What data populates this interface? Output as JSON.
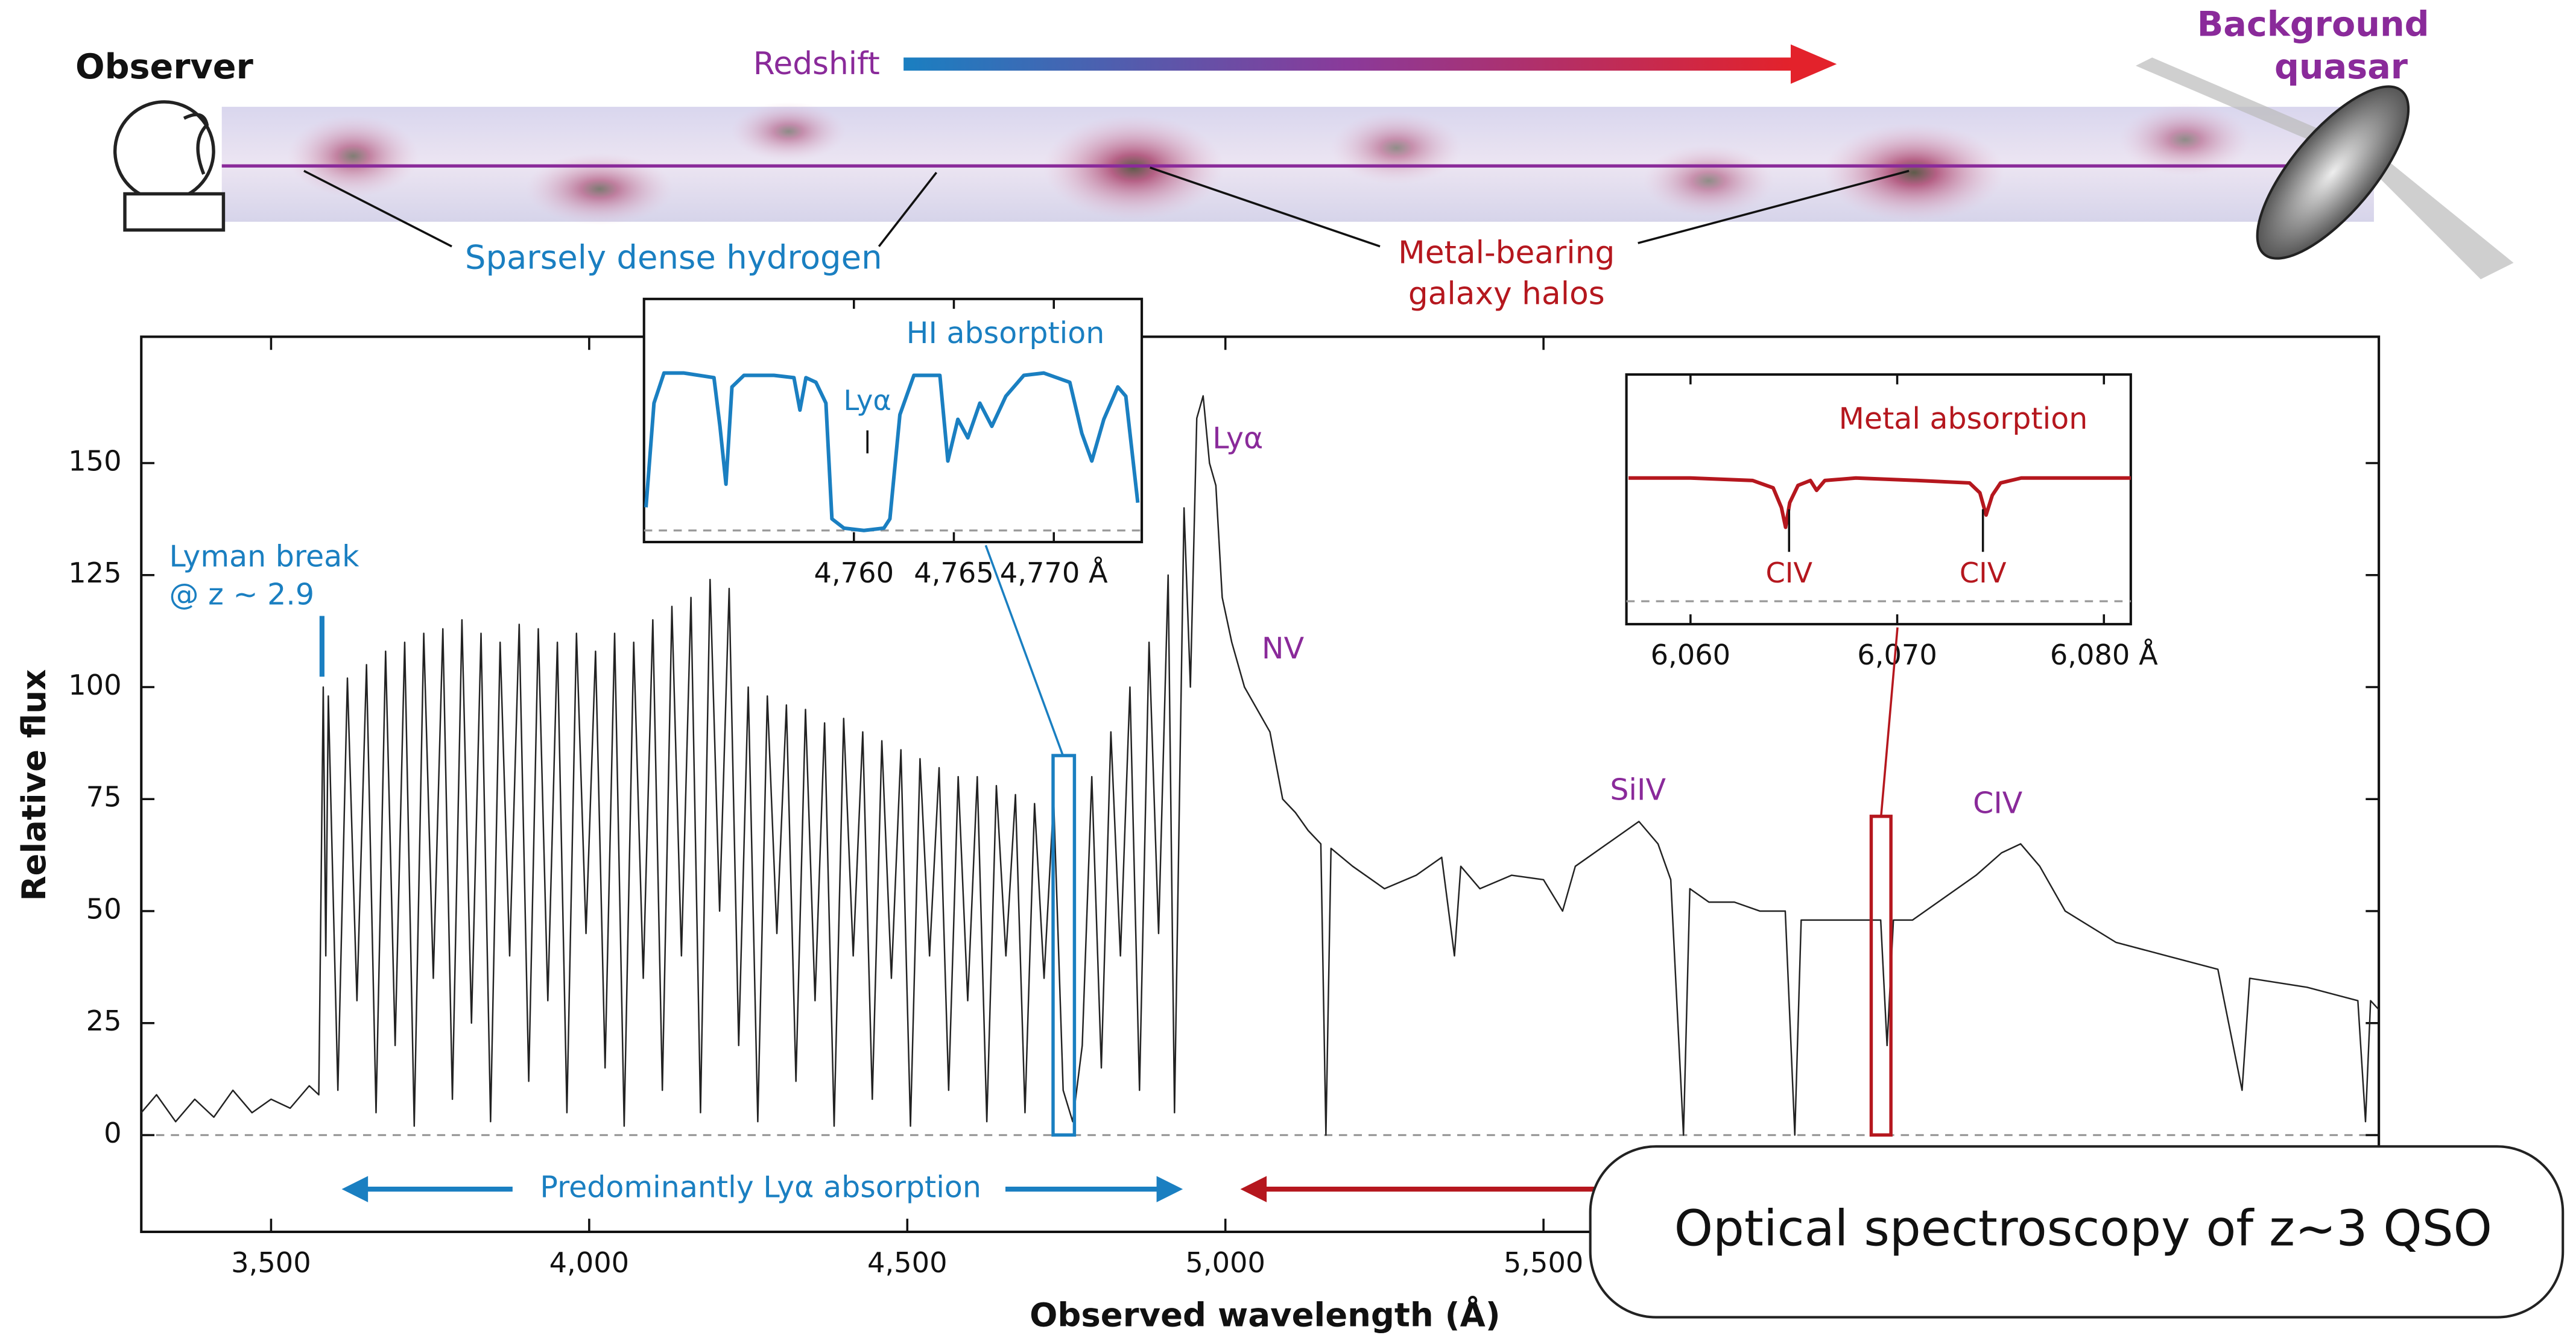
{
  "illustration": {
    "observer": "Observer",
    "redshift": "Redshift",
    "quasar": [
      "Background",
      "quasar"
    ],
    "hydrogen": "Sparsely dense hydrogen",
    "halos": [
      "Metal-bearing",
      "galaxy halos"
    ]
  },
  "callout": "Optical spectroscopy of z~3 QSO",
  "chart_data": [
    {
      "type": "line",
      "x_label": "Observed wavelength (Å)",
      "y_label": "Relative flux",
      "color": "#222222",
      "annotations": {
        "lyman_break": [
          "Lyman break",
          "@ z ~ 2.9"
        ],
        "lya": "Lyα",
        "nv": "NV",
        "siiv": "SiIV",
        "civ": "CIV",
        "forest": "Predominantly Lyα absorption"
      },
      "xlim": [
        3296,
        6813
      ],
      "ylim": [
        -21.6,
        178.2
      ],
      "xticks": [
        {
          "value": 3500,
          "label": "3,500"
        },
        {
          "value": 4000,
          "label": "4,000"
        },
        {
          "value": 4500,
          "label": "4,500"
        },
        {
          "value": 5000,
          "label": "5,000"
        },
        {
          "value": 5500,
          "label": "5,500"
        }
      ],
      "yticks": [
        0,
        25,
        50,
        75,
        100,
        125,
        150
      ],
      "x": [
        3296,
        3320,
        3350,
        3380,
        3410,
        3440,
        3470,
        3500,
        3530,
        3560,
        3575,
        3582,
        3586,
        3590,
        3605,
        3620,
        3635,
        3650,
        3665,
        3680,
        3695,
        3710,
        3725,
        3740,
        3755,
        3770,
        3785,
        3800,
        3815,
        3830,
        3845,
        3860,
        3875,
        3890,
        3905,
        3920,
        3935,
        3950,
        3965,
        3980,
        3995,
        4010,
        4025,
        4040,
        4055,
        4070,
        4085,
        4100,
        4115,
        4130,
        4145,
        4160,
        4175,
        4190,
        4205,
        4220,
        4235,
        4250,
        4265,
        4280,
        4295,
        4310,
        4325,
        4340,
        4355,
        4370,
        4385,
        4400,
        4415,
        4430,
        4445,
        4460,
        4475,
        4490,
        4505,
        4520,
        4535,
        4550,
        4565,
        4580,
        4595,
        4610,
        4625,
        4640,
        4655,
        4670,
        4685,
        4700,
        4715,
        4730,
        4745,
        4760,
        4775,
        4790,
        4805,
        4820,
        4835,
        4850,
        4865,
        4880,
        4895,
        4910,
        4920,
        4935,
        4945,
        4955,
        4965,
        4975,
        4985,
        4995,
        5010,
        5030,
        5050,
        5070,
        5090,
        5110,
        5130,
        5150,
        5158,
        5166,
        5200,
        5250,
        5300,
        5340,
        5360,
        5370,
        5400,
        5450,
        5500,
        5530,
        5550,
        5600,
        5630,
        5650,
        5680,
        5700,
        5720,
        5730,
        5760,
        5800,
        5840,
        5880,
        5895,
        5905,
        5960,
        6000,
        6030,
        6040,
        6050,
        6080,
        6120,
        6180,
        6220,
        6250,
        6280,
        6320,
        6400,
        6480,
        6560,
        6598,
        6610,
        6700,
        6780,
        6792,
        6800,
        6813
      ],
      "values": [
        5,
        9,
        3,
        8,
        4,
        10,
        5,
        8,
        6,
        11,
        9,
        100,
        40,
        98,
        10,
        102,
        30,
        105,
        5,
        108,
        20,
        110,
        2,
        112,
        35,
        113,
        8,
        115,
        25,
        112,
        3,
        110,
        40,
        114,
        12,
        113,
        30,
        110,
        5,
        112,
        45,
        108,
        15,
        112,
        2,
        110,
        35,
        115,
        10,
        118,
        40,
        120,
        5,
        124,
        50,
        122,
        20,
        100,
        3,
        98,
        45,
        96,
        12,
        95,
        30,
        92,
        2,
        93,
        40,
        90,
        8,
        88,
        35,
        86,
        2,
        84,
        40,
        82,
        10,
        80,
        30,
        80,
        3,
        78,
        40,
        76,
        5,
        74,
        35,
        75,
        10,
        3,
        20,
        80,
        15,
        90,
        40,
        100,
        10,
        110,
        45,
        125,
        5,
        140,
        100,
        160,
        165,
        150,
        145,
        120,
        110,
        100,
        95,
        90,
        75,
        72,
        68,
        65,
        0,
        64,
        60,
        55,
        58,
        62,
        40,
        60,
        55,
        58,
        57,
        50,
        60,
        65,
        68,
        70,
        65,
        57,
        0,
        55,
        52,
        52,
        50,
        50,
        0,
        48,
        48,
        48,
        48,
        20,
        48,
        48,
        52,
        58,
        63,
        65,
        60,
        50,
        43,
        40,
        37,
        10,
        35,
        33,
        30,
        3,
        30,
        28
      ]
    },
    {
      "type": "line",
      "title": "HI absorption",
      "color": "#1a7fc1",
      "annotations": {
        "lya": "Lyα"
      },
      "xlim": [
        4749.5,
        4774.4
      ],
      "ylim": [
        -5,
        100
      ],
      "xticks": [
        {
          "value": 4760,
          "label": "4,760"
        },
        {
          "value": 4765,
          "label": "4,765"
        },
        {
          "value": 4770,
          "label": "4,770 Å"
        }
      ],
      "x": [
        4749.6,
        4750,
        4750.5,
        4751.5,
        4753,
        4753.3,
        4753.6,
        4753.9,
        4754.5,
        4756,
        4757,
        4757.3,
        4757.6,
        4758.1,
        4758.6,
        4758.9,
        4759.5,
        4760.5,
        4761.5,
        4761.8,
        4762.3,
        4763,
        4764.3,
        4764.7,
        4765.2,
        4765.7,
        4766.3,
        4766.9,
        4767.6,
        4768.5,
        4769.5,
        4770.8,
        4771.4,
        4771.9,
        4772.5,
        4773.2,
        4773.6,
        4774.2
      ],
      "values": [
        10,
        55,
        68,
        68,
        66,
        45,
        20,
        62,
        67,
        67,
        66,
        52,
        66,
        64,
        55,
        5,
        1,
        0,
        1,
        5,
        50,
        67,
        67,
        30,
        48,
        40,
        55,
        45,
        58,
        67,
        68,
        64,
        42,
        30,
        48,
        62,
        58,
        12
      ]
    },
    {
      "type": "line",
      "title": "Metal absorption",
      "color": "#b5171e",
      "annotations": {
        "civ_1": "CIV",
        "civ_2": "CIV"
      },
      "xlim": [
        6056.9,
        6081.3
      ],
      "ylim": [
        -9.3,
        92
      ],
      "xticks": [
        {
          "value": 6060,
          "label": "6,060"
        },
        {
          "value": 6070,
          "label": "6,070"
        },
        {
          "value": 6080,
          "label": "6,080 Å"
        }
      ],
      "x": [
        6057,
        6060,
        6063,
        6064,
        6064.4,
        6064.6,
        6064.8,
        6065.2,
        6065.8,
        6066.1,
        6066.5,
        6068,
        6071,
        6073.5,
        6074,
        6074.3,
        6074.6,
        6075,
        6076,
        6079,
        6081.3
      ],
      "values": [
        50,
        50,
        49,
        46,
        38,
        30,
        40,
        47,
        49,
        45,
        49,
        50,
        49,
        48,
        44,
        35,
        43,
        48,
        50,
        50,
        50
      ]
    }
  ]
}
